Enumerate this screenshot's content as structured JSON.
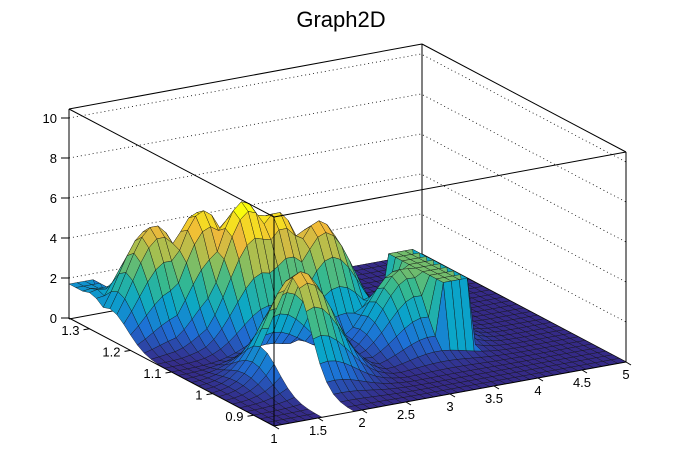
{
  "chart_data": {
    "type": "surface",
    "title": "Graph2D",
    "x_ticks": [
      "1",
      "1.5",
      "2",
      "2.5",
      "3",
      "3.5",
      "4",
      "4.5",
      "5"
    ],
    "y_ticks": [
      "0.9",
      "1",
      "1.1",
      "1.2",
      "1.3"
    ],
    "z_ticks": [
      "0",
      "2",
      "4",
      "6",
      "8",
      "10"
    ],
    "xlim": [
      1,
      5
    ],
    "ylim": [
      0.85,
      1.35
    ],
    "zlim": [
      0,
      10.5
    ],
    "grid": true,
    "colormap": [
      "#352a87",
      "#1e6fd6",
      "#0aa6c9",
      "#36b98f",
      "#9fbf52",
      "#f0b93a",
      "#f9fb0e"
    ],
    "peaks": [
      {
        "x": 1.1,
        "y": 1.3,
        "z": 1.9
      },
      {
        "x": 1.5,
        "y": 1.25,
        "z": 5.3
      },
      {
        "x": 1.9,
        "y": 1.22,
        "z": 6.1
      },
      {
        "x": 2.2,
        "y": 1.18,
        "z": 6.7
      },
      {
        "x": 2.5,
        "y": 1.17,
        "z": 6.1
      },
      {
        "x": 2.9,
        "y": 1.15,
        "z": 5.5
      },
      {
        "x": 2.0,
        "y": 1.0,
        "z": 5.3
      },
      {
        "x": 3.4,
        "y": 1.05,
        "z": 3.8
      }
    ]
  }
}
